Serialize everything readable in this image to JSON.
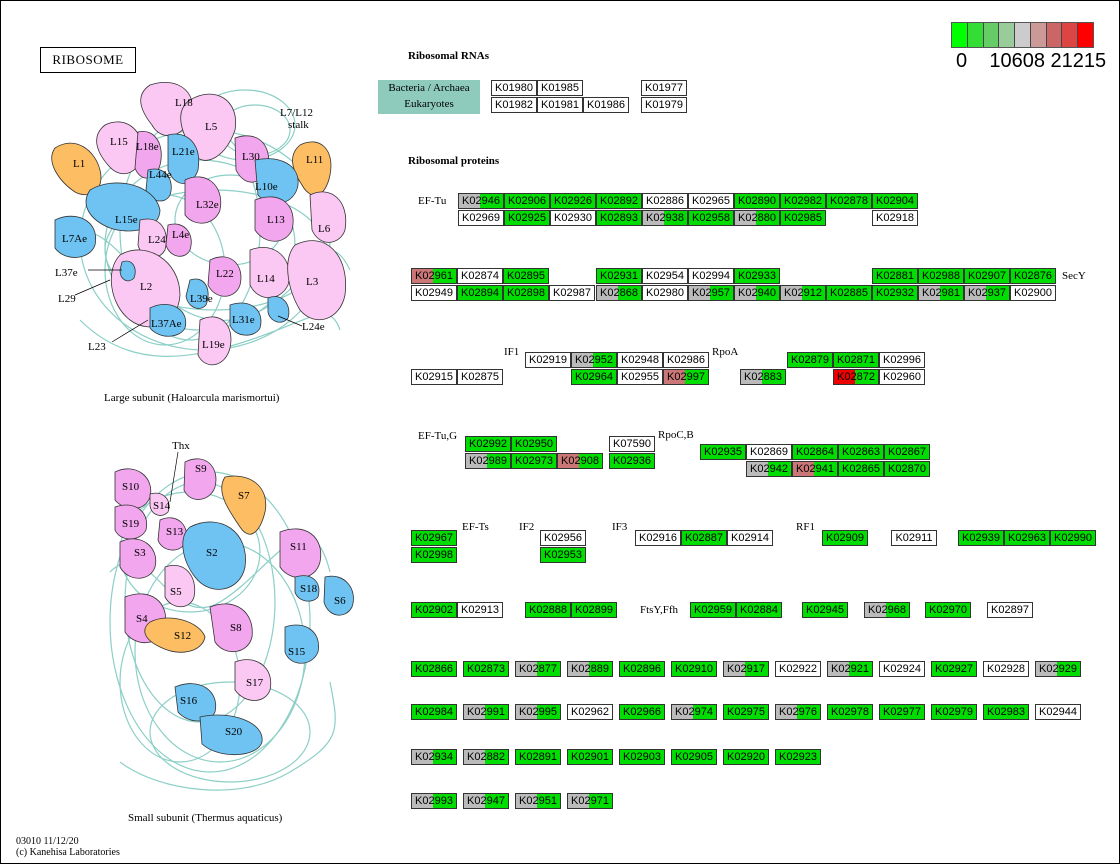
{
  "title": "RIBOSOME",
  "headings": {
    "rnas": "Ribosomal RNAs",
    "proteins": "Ribosomal proteins"
  },
  "rna_legend": {
    "line1": "Bacteria / Archaea",
    "line2": "Eukaryotes"
  },
  "color_scale": {
    "colors": [
      "#00ff00",
      "#33dd33",
      "#66cc66",
      "#99cc99",
      "#cccccc",
      "#cc9999",
      "#cc6666",
      "#dd4444",
      "#ff0000"
    ],
    "labels": [
      "0",
      "10608",
      "21215"
    ]
  },
  "colors": {
    "green": "#00dd00",
    "grey": "#bbbbbb",
    "pink": "#cc7777",
    "red": "#ee0000",
    "white": "#ffffff"
  },
  "large_subunit": {
    "caption": "Large subunit (Haloarcula marismortui)",
    "stalk_label": [
      "L7/L12",
      "stalk"
    ],
    "proteins": [
      "L18",
      "L5",
      "L15",
      "L18e",
      "L21e",
      "L30",
      "L11",
      "L1",
      "L10e",
      "L44e",
      "L15e",
      "L32e",
      "L13",
      "L6",
      "L7Ae",
      "L24",
      "L4e",
      "L2",
      "L22",
      "L14",
      "L3",
      "L39e",
      "L37Ae",
      "L31e",
      "L19e"
    ],
    "pointer_labels": [
      "L37e",
      "L29",
      "L23",
      "L24e"
    ]
  },
  "small_subunit": {
    "caption": "Small subunit (Thermus aquaticus)",
    "proteins": [
      "S9",
      "S10",
      "S14",
      "S7",
      "S19",
      "S13",
      "S3",
      "S2",
      "S11",
      "S18",
      "S6",
      "S5",
      "S4",
      "S12",
      "S8",
      "S15",
      "S17",
      "S16",
      "S20"
    ],
    "pointer_labels": [
      "Thx"
    ]
  },
  "row_labels": [
    "EF-Tu",
    "SecY",
    "IF1",
    "RpoA",
    "EF-Tu,G",
    "RpoC,B",
    "EF-Ts",
    "IF2",
    "IF3",
    "RF1",
    "FtsY,Ffh"
  ],
  "footer": {
    "line1": "03010 11/12/20",
    "line2": "(c) Kanehisa Laboratories"
  },
  "boxes": [
    {
      "id": "K01980",
      "c": "white"
    },
    {
      "id": "K01985",
      "c": "white"
    },
    {
      "id": "K01977",
      "c": "white"
    },
    {
      "id": "K01982",
      "c": "white"
    },
    {
      "id": "K01981",
      "c": "white"
    },
    {
      "id": "K01986",
      "c": "white"
    },
    {
      "id": "K01979",
      "c": "white"
    },
    {
      "id": "K02946",
      "c": "split",
      "l": "grey",
      "r": "green"
    },
    {
      "id": "K02906",
      "c": "green"
    },
    {
      "id": "K02926",
      "c": "green"
    },
    {
      "id": "K02892",
      "c": "green"
    },
    {
      "id": "K02886",
      "c": "white"
    },
    {
      "id": "K02965",
      "c": "white"
    },
    {
      "id": "K02890",
      "c": "green"
    },
    {
      "id": "K02982",
      "c": "green"
    },
    {
      "id": "K02878",
      "c": "green"
    },
    {
      "id": "K02904",
      "c": "green"
    },
    {
      "id": "K02969",
      "c": "white"
    },
    {
      "id": "K02925",
      "c": "green"
    },
    {
      "id": "K02930",
      "c": "white"
    },
    {
      "id": "K02893",
      "c": "green"
    },
    {
      "id": "K02938",
      "c": "split",
      "l": "grey",
      "r": "green"
    },
    {
      "id": "K02958",
      "c": "green"
    },
    {
      "id": "K02880",
      "c": "split",
      "l": "grey",
      "r": "green"
    },
    {
      "id": "K02985",
      "c": "green"
    },
    {
      "id": "K02918",
      "c": "white"
    },
    {
      "id": "K02961",
      "c": "split",
      "l": "pink",
      "r": "green"
    },
    {
      "id": "K02874",
      "c": "white"
    },
    {
      "id": "K02895",
      "c": "green"
    },
    {
      "id": "K02931",
      "c": "green"
    },
    {
      "id": "K02954",
      "c": "white"
    },
    {
      "id": "K02994",
      "c": "white"
    },
    {
      "id": "K02933",
      "c": "green"
    },
    {
      "id": "K02881",
      "c": "green"
    },
    {
      "id": "K02988",
      "c": "green"
    },
    {
      "id": "K02907",
      "c": "green"
    },
    {
      "id": "K02876",
      "c": "green"
    },
    {
      "id": "K02949",
      "c": "white"
    },
    {
      "id": "K02894",
      "c": "green"
    },
    {
      "id": "K02898",
      "c": "green"
    },
    {
      "id": "K02987",
      "c": "white"
    },
    {
      "id": "K02868",
      "c": "split",
      "l": "grey",
      "r": "green"
    },
    {
      "id": "K02980",
      "c": "white"
    },
    {
      "id": "K02957",
      "c": "split",
      "l": "grey",
      "r": "green"
    },
    {
      "id": "K02940",
      "c": "split",
      "l": "grey",
      "r": "green"
    },
    {
      "id": "K02912",
      "c": "split",
      "l": "grey",
      "r": "green"
    },
    {
      "id": "K02885",
      "c": "green"
    },
    {
      "id": "K02932",
      "c": "green"
    },
    {
      "id": "K02981",
      "c": "split",
      "l": "grey",
      "r": "green"
    },
    {
      "id": "K02937",
      "c": "split",
      "l": "grey",
      "r": "green"
    },
    {
      "id": "K02900",
      "c": "white"
    },
    {
      "id": "K02919",
      "c": "white"
    },
    {
      "id": "K02952",
      "c": "split",
      "l": "grey",
      "r": "green"
    },
    {
      "id": "K02948",
      "c": "white"
    },
    {
      "id": "K02986",
      "c": "white"
    },
    {
      "id": "K02879",
      "c": "green"
    },
    {
      "id": "K02871",
      "c": "green"
    },
    {
      "id": "K02996",
      "c": "white"
    },
    {
      "id": "K02915",
      "c": "white"
    },
    {
      "id": "K02875",
      "c": "white"
    },
    {
      "id": "K02964",
      "c": "green"
    },
    {
      "id": "K02955",
      "c": "white"
    },
    {
      "id": "K02997",
      "c": "split",
      "l": "pink",
      "r": "green"
    },
    {
      "id": "K02883",
      "c": "split",
      "l": "grey",
      "r": "green"
    },
    {
      "id": "K02872",
      "c": "split",
      "l": "red",
      "r": "green"
    },
    {
      "id": "K02960",
      "c": "white"
    },
    {
      "id": "K02992",
      "c": "green"
    },
    {
      "id": "K02950",
      "c": "green"
    },
    {
      "id": "K07590",
      "c": "white"
    },
    {
      "id": "K02935",
      "c": "green"
    },
    {
      "id": "K02869",
      "c": "white"
    },
    {
      "id": "K02864",
      "c": "green"
    },
    {
      "id": "K02863",
      "c": "green"
    },
    {
      "id": "K02867",
      "c": "green"
    },
    {
      "id": "K02989",
      "c": "split",
      "l": "grey",
      "r": "green"
    },
    {
      "id": "K02973",
      "c": "green"
    },
    {
      "id": "K02908",
      "c": "split",
      "l": "pink",
      "r": "green"
    },
    {
      "id": "K02936",
      "c": "green"
    },
    {
      "id": "K02942",
      "c": "split",
      "l": "grey",
      "r": "green"
    },
    {
      "id": "K02941",
      "c": "split",
      "l": "pink",
      "r": "green"
    },
    {
      "id": "K02865",
      "c": "green"
    },
    {
      "id": "K02870",
      "c": "green"
    },
    {
      "id": "K02967",
      "c": "green"
    },
    {
      "id": "K02998",
      "c": "green"
    },
    {
      "id": "K02956",
      "c": "white"
    },
    {
      "id": "K02953",
      "c": "green"
    },
    {
      "id": "K02916",
      "c": "white"
    },
    {
      "id": "K02887",
      "c": "green"
    },
    {
      "id": "K02914",
      "c": "white"
    },
    {
      "id": "K02909",
      "c": "green"
    },
    {
      "id": "K02911",
      "c": "white"
    },
    {
      "id": "K02939",
      "c": "green"
    },
    {
      "id": "K02963",
      "c": "green"
    },
    {
      "id": "K02990",
      "c": "green"
    },
    {
      "id": "K02902",
      "c": "green"
    },
    {
      "id": "K02913",
      "c": "white"
    },
    {
      "id": "K02888",
      "c": "green"
    },
    {
      "id": "K02899",
      "c": "green"
    },
    {
      "id": "K02959",
      "c": "green"
    },
    {
      "id": "K02884",
      "c": "green"
    },
    {
      "id": "K02945",
      "c": "green"
    },
    {
      "id": "K02968",
      "c": "split",
      "l": "grey",
      "r": "green"
    },
    {
      "id": "K02970",
      "c": "green"
    },
    {
      "id": "K02897",
      "c": "white"
    },
    {
      "id": "K02866",
      "c": "green"
    },
    {
      "id": "K02873",
      "c": "green"
    },
    {
      "id": "K02877",
      "c": "split",
      "l": "grey",
      "r": "green"
    },
    {
      "id": "K02889",
      "c": "split",
      "l": "grey",
      "r": "green"
    },
    {
      "id": "K02896",
      "c": "green"
    },
    {
      "id": "K02910",
      "c": "green"
    },
    {
      "id": "K02917",
      "c": "split",
      "l": "grey",
      "r": "green"
    },
    {
      "id": "K02922",
      "c": "white"
    },
    {
      "id": "K02921",
      "c": "split",
      "l": "grey",
      "r": "green"
    },
    {
      "id": "K02924",
      "c": "white"
    },
    {
      "id": "K02927",
      "c": "green"
    },
    {
      "id": "K02928",
      "c": "white"
    },
    {
      "id": "K02929",
      "c": "split",
      "l": "grey",
      "r": "green"
    },
    {
      "id": "K02984",
      "c": "green"
    },
    {
      "id": "K02991",
      "c": "split",
      "l": "grey",
      "r": "green"
    },
    {
      "id": "K02995",
      "c": "split",
      "l": "grey",
      "r": "green"
    },
    {
      "id": "K02962",
      "c": "white"
    },
    {
      "id": "K02966",
      "c": "green"
    },
    {
      "id": "K02974",
      "c": "split",
      "l": "grey",
      "r": "green"
    },
    {
      "id": "K02975",
      "c": "green"
    },
    {
      "id": "K02976",
      "c": "split",
      "l": "grey",
      "r": "green"
    },
    {
      "id": "K02978",
      "c": "green"
    },
    {
      "id": "K02977",
      "c": "green"
    },
    {
      "id": "K02979",
      "c": "green"
    },
    {
      "id": "K02983",
      "c": "green"
    },
    {
      "id": "K02944",
      "c": "white"
    },
    {
      "id": "K02934",
      "c": "split",
      "l": "grey",
      "r": "green"
    },
    {
      "id": "K02882",
      "c": "split",
      "l": "grey",
      "r": "green"
    },
    {
      "id": "K02891",
      "c": "green"
    },
    {
      "id": "K02901",
      "c": "green"
    },
    {
      "id": "K02903",
      "c": "green"
    },
    {
      "id": "K02905",
      "c": "green"
    },
    {
      "id": "K02920",
      "c": "green"
    },
    {
      "id": "K02923",
      "c": "green"
    },
    {
      "id": "K02993",
      "c": "split",
      "l": "grey",
      "r": "green"
    },
    {
      "id": "K02947",
      "c": "split",
      "l": "grey",
      "r": "green"
    },
    {
      "id": "K02951",
      "c": "split",
      "l": "grey",
      "r": "green"
    },
    {
      "id": "K02971",
      "c": "split",
      "l": "grey",
      "r": "green"
    }
  ]
}
